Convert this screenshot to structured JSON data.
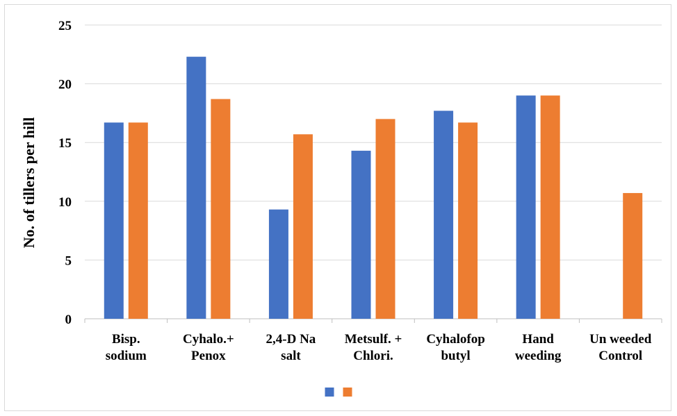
{
  "chart_data": {
    "type": "bar",
    "title": "",
    "xlabel": "",
    "ylabel": "No. of tillers per hill",
    "ylim": [
      0,
      25
    ],
    "yticks": [
      0,
      5,
      10,
      15,
      20,
      25
    ],
    "grid": true,
    "legend": "bottom",
    "categories": [
      [
        "Bisp.",
        "sodium"
      ],
      [
        "Cyhalo.+",
        "Penox"
      ],
      [
        "2,4-D Na",
        "salt"
      ],
      [
        "Metsulf. +",
        "Chlori."
      ],
      [
        "Cyhalofop",
        "butyl"
      ],
      [
        "Hand",
        "weeding"
      ],
      [
        "Un weeded",
        "Control"
      ]
    ],
    "series": [
      {
        "color": "#4472C4",
        "values": [
          16.7,
          22.3,
          9.3,
          14.3,
          17.7,
          19.0,
          null
        ]
      },
      {
        "color": "#ED7D31",
        "values": [
          16.7,
          18.7,
          15.7,
          17.0,
          16.7,
          19.0,
          10.7
        ]
      }
    ]
  }
}
